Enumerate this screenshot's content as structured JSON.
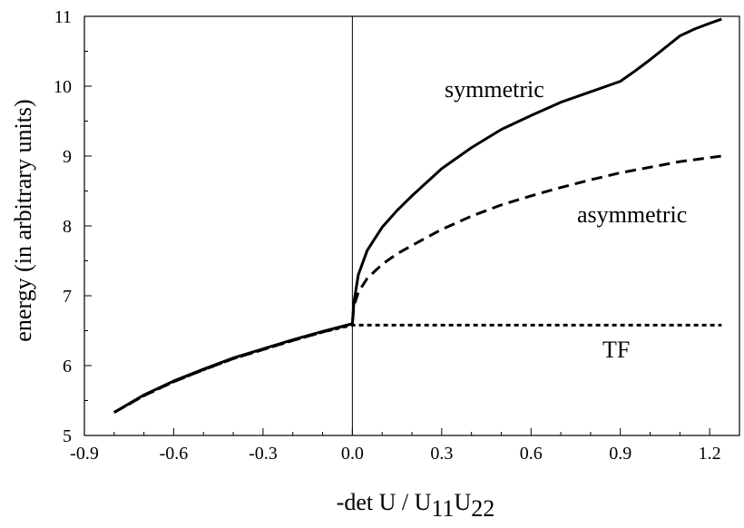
{
  "chart_data": {
    "type": "line",
    "title": "",
    "xlabel": {
      "main": "-det U / U",
      "sub": "11",
      "main2": "U",
      "sub2": "22"
    },
    "ylabel": "energy (in arbitrary units)",
    "xlim": [
      -0.9,
      1.3
    ],
    "ylim": [
      5,
      11
    ],
    "xticks": [
      "-0.9",
      "-0.6",
      "-0.3",
      "0.0",
      "0.3",
      "0.6",
      "0.9",
      "1.2"
    ],
    "yticks": [
      "5",
      "6",
      "7",
      "8",
      "9",
      "10",
      "11"
    ],
    "reference_line": {
      "x": 0.0
    },
    "grid": false,
    "annotations": [
      {
        "text": "symmetric",
        "series": "symmetric"
      },
      {
        "text": "asymmetric",
        "series": "asymmetric"
      },
      {
        "text": "TF",
        "series": "TF"
      }
    ],
    "series": [
      {
        "key": "symmetric",
        "style": "solid",
        "x": [
          -0.8,
          -0.7,
          -0.6,
          -0.5,
          -0.4,
          -0.3,
          -0.2,
          -0.1,
          0.0,
          0.005,
          0.02,
          0.05,
          0.1,
          0.15,
          0.2,
          0.3,
          0.4,
          0.5,
          0.6,
          0.7,
          0.8,
          0.9,
          0.95,
          1.0,
          1.05,
          1.1,
          1.15,
          1.2,
          1.24
        ],
        "y": [
          5.33,
          5.58,
          5.78,
          5.95,
          6.11,
          6.24,
          6.37,
          6.49,
          6.6,
          6.9,
          7.3,
          7.65,
          7.98,
          8.22,
          8.43,
          8.82,
          9.12,
          9.38,
          9.58,
          9.77,
          9.92,
          10.07,
          10.22,
          10.38,
          10.55,
          10.72,
          10.82,
          10.9,
          10.96
        ]
      },
      {
        "key": "asymmetric",
        "style": "dashed",
        "x": [
          -0.8,
          -0.7,
          -0.6,
          -0.5,
          -0.4,
          -0.3,
          -0.2,
          -0.1,
          0.0,
          0.005,
          0.02,
          0.05,
          0.1,
          0.15,
          0.2,
          0.3,
          0.4,
          0.5,
          0.6,
          0.7,
          0.8,
          0.9,
          1.0,
          1.1,
          1.24
        ],
        "y": [
          5.33,
          5.57,
          5.77,
          5.94,
          6.1,
          6.23,
          6.36,
          6.48,
          6.6,
          6.85,
          7.05,
          7.25,
          7.45,
          7.6,
          7.72,
          7.95,
          8.14,
          8.3,
          8.43,
          8.55,
          8.66,
          8.76,
          8.84,
          8.92,
          9.0
        ]
      },
      {
        "key": "TF",
        "style": "dotted",
        "x": [
          -0.8,
          -0.7,
          -0.6,
          -0.5,
          -0.4,
          -0.3,
          -0.2,
          -0.1,
          0.0,
          0.3,
          0.6,
          0.9,
          1.24
        ],
        "y": [
          5.33,
          5.57,
          5.77,
          5.94,
          6.1,
          6.23,
          6.36,
          6.48,
          6.58,
          6.58,
          6.58,
          6.58,
          6.58
        ]
      }
    ]
  }
}
